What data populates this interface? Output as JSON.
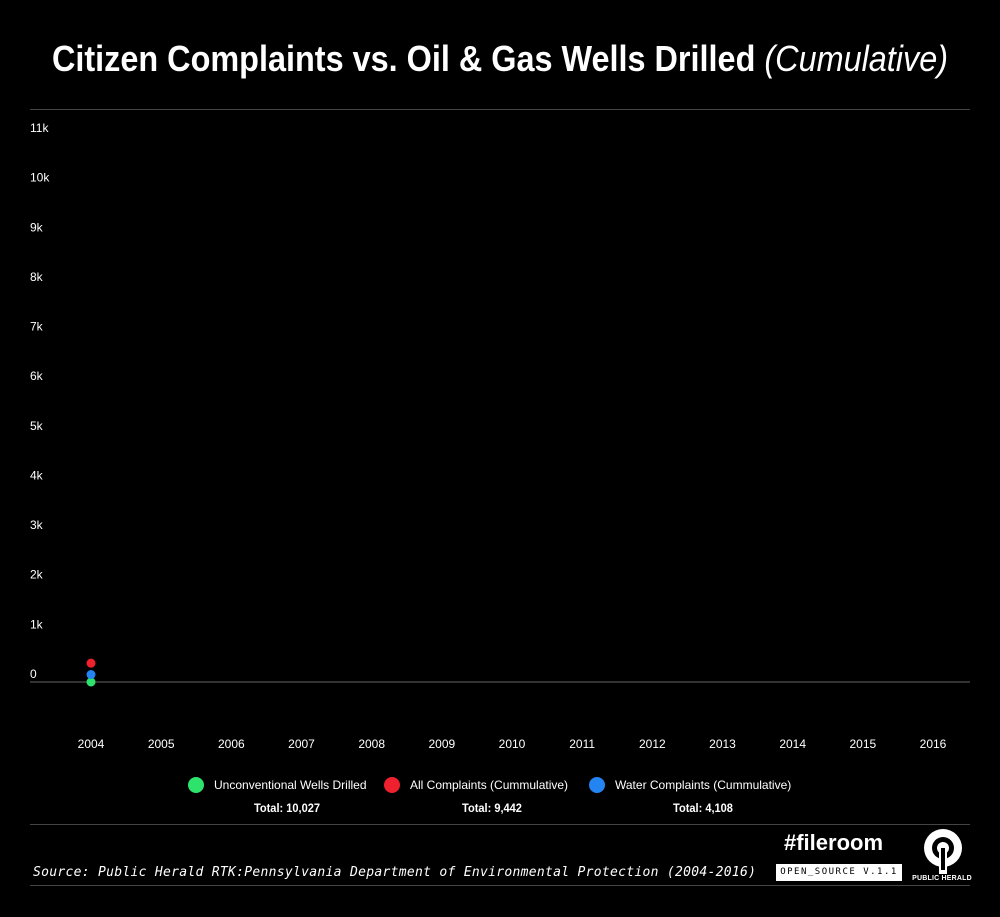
{
  "header": {
    "title_main": "Citizen Complaints vs. Oil & Gas Wells Drilled",
    "title_suffix": "(Cumulative)"
  },
  "chart_data": {
    "type": "scatter",
    "x": [
      2004,
      2005,
      2006,
      2007,
      2008,
      2009,
      2010,
      2011,
      2012,
      2013,
      2014,
      2015,
      2016
    ],
    "x_tick_labels": [
      "2004",
      "2005",
      "2006",
      "2007",
      "2008",
      "2009",
      "2010",
      "2011",
      "2012",
      "2013",
      "2014",
      "2015",
      "2016"
    ],
    "y_tick_labels": [
      "0",
      "1k",
      "2k",
      "3k",
      "4k",
      "5k",
      "6k",
      "7k",
      "8k",
      "9k",
      "10k",
      "11k"
    ],
    "ylim": [
      0,
      11000
    ],
    "series": [
      {
        "name": "Unconventional Wells Drilled",
        "color": "#2ee36b",
        "points": [
          {
            "x": 2004,
            "y": 0
          }
        ],
        "total": "Total: 10,027"
      },
      {
        "name": "All Complaints (Cummulative)",
        "color": "#f0212e",
        "points": [
          {
            "x": 2004,
            "y": 380
          }
        ],
        "total": "Total: 9,442"
      },
      {
        "name": "Water Complaints (Cummulative)",
        "color": "#2484f2",
        "points": [
          {
            "x": 2004,
            "y": 150
          }
        ],
        "total": "Total: 4,108"
      }
    ],
    "grid": false,
    "legend_position": "bottom"
  },
  "footer": {
    "source": "Source: Public Herald RTK:Pennsylvania Department of Environmental Protection (2004-2016)",
    "hashtag": "#fileroom",
    "version": "OPEN_SOURCE V.1.1",
    "brand": "PUBLIC HERALD",
    "brand_icon": "public-herald-logo-icon"
  }
}
